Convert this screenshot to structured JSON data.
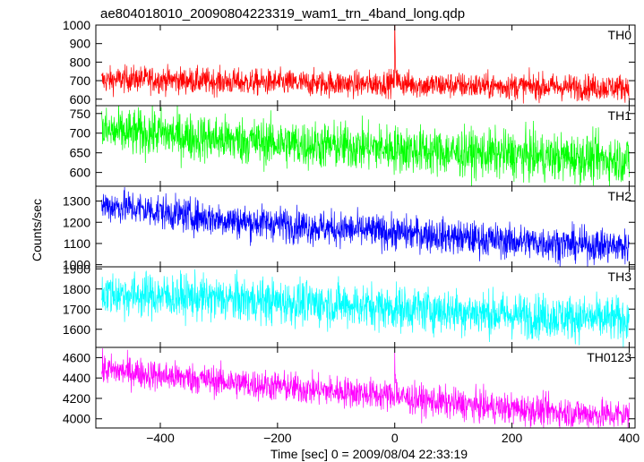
{
  "chart_data": {
    "type": "line",
    "title": "ae804018010_20090804223319_wam1_trn_4band_long.qdp",
    "xlabel": "Time [sec] 0 = 2009/08/04 22:33:19",
    "ylabel": "Counts/sec",
    "xlim": [
      -510,
      410
    ],
    "x_ticks": [
      -400,
      -200,
      0,
      200,
      400
    ],
    "x_tick_labels": [
      "−400",
      "−200",
      "0",
      "200",
      "400"
    ],
    "grid": false,
    "panels": [
      {
        "name": "TH0",
        "color": "#ff0000",
        "ylim": [
          565,
          1000
        ],
        "y_ticks": [
          600,
          700,
          800,
          900,
          1000
        ],
        "y_tick_labels": [
          "600",
          "700",
          "800",
          "900",
          "1000"
        ],
        "x": [
          -500,
          -450,
          -400,
          -350,
          -300,
          -250,
          -200,
          -150,
          -100,
          -50,
          0,
          50,
          100,
          150,
          200,
          250,
          300,
          350,
          400
        ],
        "y": [
          700,
          710,
          705,
          700,
          695,
          690,
          690,
          685,
          685,
          680,
          690,
          675,
          675,
          670,
          670,
          668,
          665,
          665,
          665
        ],
        "noise": 35,
        "burst": {
          "x": 0,
          "peak": 1000
        }
      },
      {
        "name": "TH1",
        "color": "#00ff00",
        "ylim": [
          565,
          770
        ],
        "y_ticks": [
          600,
          650,
          700,
          750
        ],
        "y_tick_labels": [
          "600",
          "650",
          "700",
          "750"
        ],
        "x": [
          -500,
          -450,
          -400,
          -350,
          -300,
          -250,
          -200,
          -150,
          -100,
          -50,
          0,
          50,
          100,
          150,
          200,
          250,
          300,
          350,
          400
        ],
        "y": [
          705,
          700,
          700,
          690,
          685,
          680,
          675,
          670,
          668,
          665,
          660,
          655,
          650,
          648,
          645,
          640,
          638,
          635,
          632
        ],
        "noise": 30
      },
      {
        "name": "TH2",
        "color": "#0000ff",
        "ylim": [
          990,
          1370
        ],
        "y_ticks": [
          1000,
          1100,
          1200,
          1300
        ],
        "y_tick_labels": [
          "1000",
          "1100",
          "1200",
          "1300"
        ],
        "x": [
          -500,
          -450,
          -400,
          -350,
          -300,
          -250,
          -200,
          -150,
          -100,
          -50,
          0,
          50,
          100,
          150,
          200,
          250,
          300,
          350,
          400
        ],
        "y": [
          1280,
          1270,
          1250,
          1230,
          1215,
          1200,
          1195,
          1180,
          1170,
          1160,
          1150,
          1145,
          1130,
          1120,
          1110,
          1105,
          1095,
          1090,
          1085
        ],
        "noise": 40
      },
      {
        "name": "TH3",
        "color": "#00ffff",
        "ylim": [
          1510,
          1910
        ],
        "y_ticks": [
          1600,
          1700,
          1800,
          1900
        ],
        "y_tick_labels": [
          "1600",
          "1700",
          "1800",
          "1900"
        ],
        "x": [
          -500,
          -450,
          -400,
          -350,
          -300,
          -250,
          -200,
          -150,
          -100,
          -50,
          0,
          50,
          100,
          150,
          200,
          250,
          300,
          350,
          400
        ],
        "y": [
          1780,
          1770,
          1765,
          1760,
          1750,
          1745,
          1735,
          1730,
          1725,
          1715,
          1705,
          1700,
          1690,
          1680,
          1670,
          1665,
          1660,
          1650,
          1650
        ],
        "noise": 55
      },
      {
        "name": "TH0123",
        "color": "#ff00ff",
        "ylim": [
          3910,
          4700
        ],
        "y_ticks": [
          4000,
          4200,
          4400,
          4600
        ],
        "y_tick_labels": [
          "4000",
          "4200",
          "4400",
          "4600"
        ],
        "x": [
          -500,
          -450,
          -400,
          -350,
          -300,
          -250,
          -200,
          -150,
          -100,
          -50,
          0,
          50,
          100,
          150,
          200,
          250,
          300,
          350,
          400
        ],
        "y": [
          4480,
          4460,
          4420,
          4400,
          4370,
          4340,
          4320,
          4290,
          4270,
          4250,
          4220,
          4180,
          4150,
          4120,
          4100,
          4080,
          4060,
          4040,
          4040
        ],
        "noise": 75,
        "burst": {
          "x": 0,
          "peak": 4680
        }
      }
    ]
  }
}
